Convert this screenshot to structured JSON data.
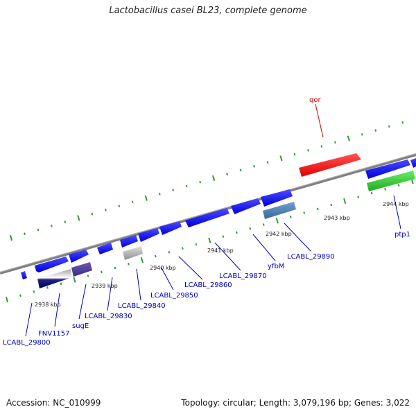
{
  "title": "Lactobacillus casei BL23, complete genome",
  "footer": {
    "accession": "Accession: NC_010999",
    "summary": "Topology: circular; Length: 3,079,196 bp; Genes: 3,022"
  },
  "colors": {
    "backbone": "#808080",
    "forward_gene": "#1a1aff",
    "reverse_gene": "#0000cc",
    "highlight_gene": "#ff2020",
    "green_gene": "#33cc33",
    "label_blue": "#0000bb",
    "label_red": "#cc0000",
    "tick_green": "#339933"
  },
  "tick_labels": [
    "2938 kbp",
    "2939 kbp",
    "2940 kbp",
    "2941 kbp",
    "2942 kbp",
    "2943 kbp",
    "2944 kbp"
  ],
  "gene_labels": [
    {
      "id": "qor",
      "text": "qor",
      "color": "red"
    },
    {
      "id": "ptp1",
      "text": "ptp1",
      "color": "blue"
    },
    {
      "id": "LCABL_29890",
      "text": "LCABL_29890",
      "color": "blue"
    },
    {
      "id": "yfbM",
      "text": "yfbM",
      "color": "blue"
    },
    {
      "id": "LCABL_29870",
      "text": "LCABL_29870",
      "color": "blue"
    },
    {
      "id": "LCABL_29860",
      "text": "LCABL_29860",
      "color": "blue"
    },
    {
      "id": "LCABL_29850",
      "text": "LCABL_29850",
      "color": "blue"
    },
    {
      "id": "LCABL_29840",
      "text": "LCABL_29840",
      "color": "blue"
    },
    {
      "id": "LCABL_29830",
      "text": "LCABL_29830",
      "color": "blue"
    },
    {
      "id": "sugE",
      "text": "sugE",
      "color": "blue"
    },
    {
      "id": "FNV1157",
      "text": "FNV1157",
      "color": "blue"
    },
    {
      "id": "LCABL_29800",
      "text": "LCABL_29800",
      "color": "blue"
    }
  ]
}
